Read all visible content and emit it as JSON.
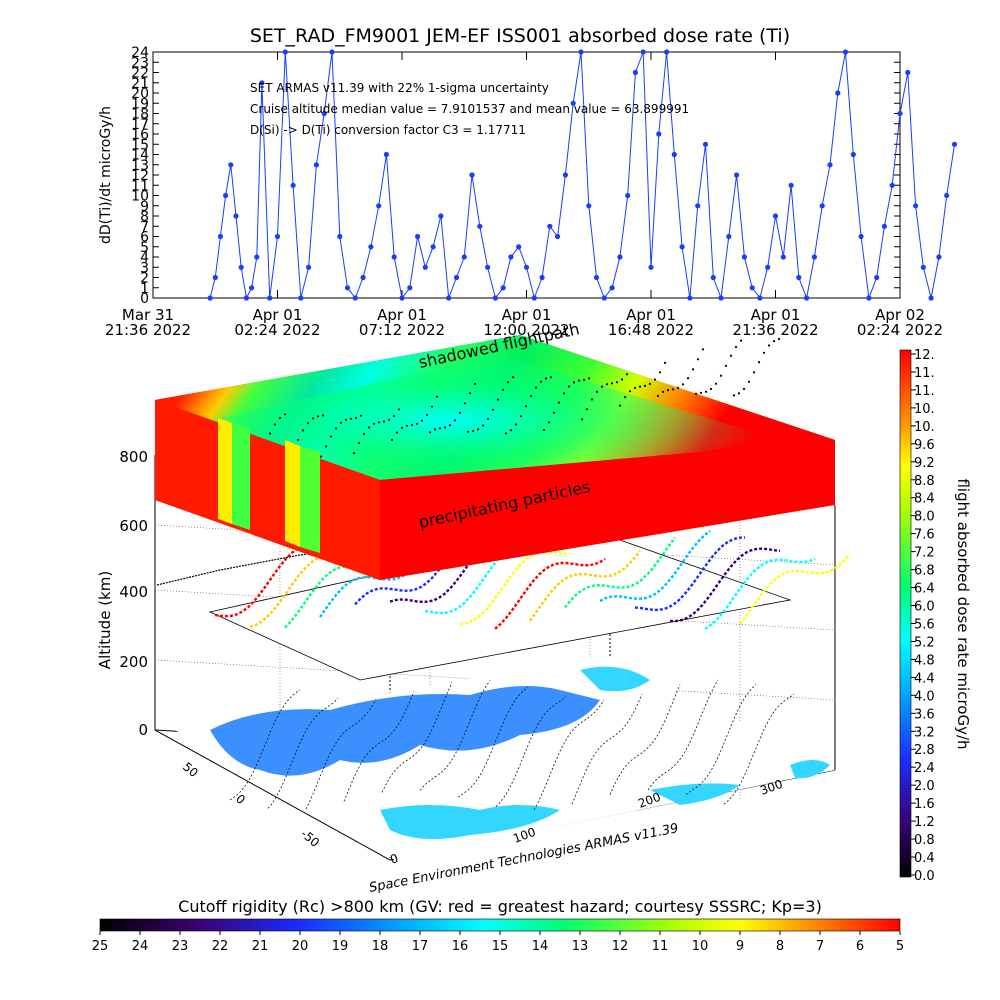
{
  "chart_data": [
    {
      "type": "line",
      "title": "SET_RAD_FM9001  JEM-EF ISS001 absorbed dose rate (Ti)",
      "ylabel": "dD(Ti)/dt microGy/h",
      "ylim": [
        0,
        24
      ],
      "y_ticks": [
        0,
        1,
        2,
        3,
        4,
        5,
        6,
        7,
        8,
        9,
        10,
        11,
        12,
        13,
        14,
        15,
        16,
        17,
        18,
        19,
        20,
        21,
        22,
        23,
        24
      ],
      "x_tick_labels": [
        [
          "Mar 31",
          "21:36 2022"
        ],
        [
          "Apr 01",
          "02:24 2022"
        ],
        [
          "Apr 01",
          "07:12 2022"
        ],
        [
          "Apr 01",
          "12:00 2022"
        ],
        [
          "Apr 01",
          "16:48 2022"
        ],
        [
          "Apr 01",
          "21:36 2022"
        ],
        [
          "Apr 02",
          "02:24 2022"
        ]
      ],
      "annotations": [
        "SET ARMAS v11.39 with 22% 1-sigma uncertainty",
        "Cruise altitude median value = 7.9101537 and mean value = 63.899991",
        "D(Si) -> D(Ti) conversion factor C3 = 1.17711"
      ],
      "series": [
        {
          "color": "#1a3cff",
          "x_hours": [
            2.2,
            2.4,
            2.6,
            2.8,
            3.0,
            3.2,
            3.4,
            3.6,
            3.8,
            4.0,
            4.2,
            4.5,
            4.8,
            5.1,
            5.4,
            5.7,
            6.0,
            6.3,
            6.6,
            6.9,
            7.2,
            7.5,
            7.8,
            8.1,
            8.4,
            8.7,
            9.0,
            9.3,
            9.6,
            9.9,
            10.2,
            10.5,
            10.8,
            11.1,
            11.4,
            11.7,
            12.0,
            12.3,
            12.6,
            12.9,
            13.2,
            13.5,
            13.8,
            14.1,
            14.4,
            14.7,
            15.0,
            15.3,
            15.6,
            15.9,
            16.2,
            16.5,
            16.8,
            17.1,
            17.4,
            17.7,
            18.0,
            18.3,
            18.6,
            18.9,
            19.2,
            19.5,
            19.8,
            20.1,
            20.4,
            20.7,
            21.0,
            21.3,
            21.6,
            21.9,
            22.2,
            22.5,
            22.8,
            23.1,
            23.4,
            23.7,
            24.0,
            24.3,
            24.6,
            24.9,
            25.2,
            25.5,
            25.8,
            26.1,
            26.4,
            26.7,
            27.0,
            27.3,
            27.6,
            27.9,
            28.2,
            28.5,
            28.8,
            29.1,
            29.4,
            29.7,
            30.0,
            30.3,
            30.6,
            30.9
          ],
          "y_values": [
            0,
            2,
            6,
            10,
            13,
            8,
            3,
            0,
            1,
            4,
            21,
            0,
            6,
            24,
            11,
            0,
            3,
            13,
            18,
            24,
            6,
            1,
            0,
            2,
            5,
            9,
            14,
            4,
            0,
            1,
            6,
            3,
            5,
            8,
            0,
            2,
            4,
            12,
            7,
            3,
            0,
            1,
            4,
            5,
            3,
            0,
            2,
            7,
            6,
            12,
            19,
            24,
            9,
            2,
            0,
            1,
            4,
            10,
            22,
            24,
            3,
            16,
            24,
            14,
            5,
            0,
            9,
            15,
            2,
            0,
            6,
            12,
            4,
            1,
            0,
            3,
            8,
            4,
            11,
            2,
            0,
            4,
            9,
            13,
            20,
            24,
            14,
            6,
            0,
            2,
            7,
            11,
            18,
            22,
            9,
            3,
            0,
            4,
            10,
            15
          ]
        }
      ]
    },
    {
      "type": "heatmap",
      "z_title": "flight absorbed dose rate microGy/h",
      "colorbar_ticks": [
        "12.",
        "11.",
        "11.",
        "10.",
        "10.",
        "9.6",
        "9.2",
        "8.8",
        "8.4",
        "8.0",
        "7.6",
        "7.2",
        "6.8",
        "6.4",
        "6.0",
        "5.6",
        "5.2",
        "4.8",
        "4.4",
        "4.0",
        "3.6",
        "3.2",
        "2.8",
        "2.4",
        "2.0",
        "1.6",
        "1.2",
        "0.8",
        "0.4",
        "0.0"
      ],
      "zlabel": "Altitude (km)",
      "z_ticks": [
        "0",
        "200",
        "400",
        "600",
        "800"
      ],
      "lon_ticks": [
        "0",
        "100",
        "200",
        "300"
      ],
      "lat_ticks": [
        "50",
        "0",
        "-50"
      ],
      "annotations": [
        "shadowed flightpath",
        "precipitating particles"
      ],
      "credit": "Space Environment Technologies ARMAS v11.39"
    },
    {
      "type": "heatmap",
      "title": "Cutoff rigidity (Rc) >800 km (GV: red = greatest hazard; courtesy SSSRC; Kp=3)",
      "colorbar_ticks": [
        "25",
        "24",
        "23",
        "22",
        "21",
        "20",
        "19",
        "18",
        "17",
        "16",
        "15",
        "14",
        "13",
        "12",
        "11",
        "10",
        "9",
        "8",
        "7",
        "6",
        "5"
      ]
    }
  ],
  "colors": {
    "plot_line": "#1a3cff",
    "colormap": [
      "#000000",
      "#3a0070",
      "#1020ff",
      "#00b0ff",
      "#00ff90",
      "#ffff00",
      "#ff8000",
      "#ff0000"
    ]
  }
}
